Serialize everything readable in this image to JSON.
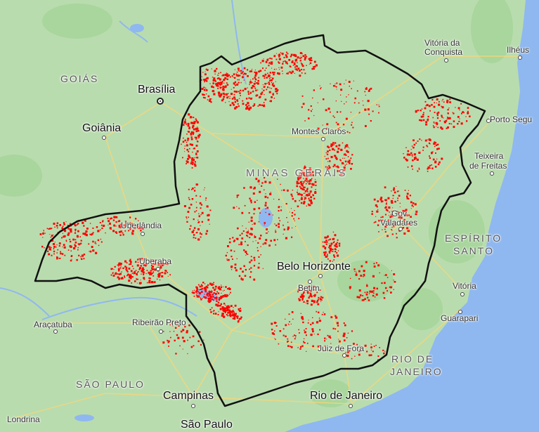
{
  "colors": {
    "land": "#b9dcae",
    "forest": "#a3d39a",
    "water": "#8fb8f0",
    "road": "#f3d77a",
    "border": "#111111",
    "highlight": "#ff0000"
  },
  "region_label": "MINAS GERAIS",
  "states": [
    {
      "label": "GOIÁS"
    },
    {
      "label": "ESPÍRITO"
    },
    {
      "label": "SANTO"
    },
    {
      "label": "RIO DE"
    },
    {
      "label": "JANEIRO"
    },
    {
      "label": "SÃO PAULO"
    }
  ],
  "cities": [
    {
      "label": "Brasília"
    },
    {
      "label": "Goiânia"
    },
    {
      "label": "Montes Claros"
    },
    {
      "label": "Vitória da"
    },
    {
      "label": "Conquista"
    },
    {
      "label": "Ilhéus"
    },
    {
      "label": "Porto Segu"
    },
    {
      "label": "Teixeira"
    },
    {
      "label": "de Freitas"
    },
    {
      "label": "Gov."
    },
    {
      "label": "Valadares"
    },
    {
      "label": "Uberlândia"
    },
    {
      "label": "Uberaba"
    },
    {
      "label": "Belo Horizonte"
    },
    {
      "label": "Betim"
    },
    {
      "label": "Vitória"
    },
    {
      "label": "Guarapari"
    },
    {
      "label": "Araçatuba"
    },
    {
      "label": "Ribeirão Preto"
    },
    {
      "label": "Juiz de Fora"
    },
    {
      "label": "Campinas"
    },
    {
      "label": "Rio de Janeiro"
    },
    {
      "label": "Londrina"
    },
    {
      "label": "São Paulo"
    }
  ]
}
